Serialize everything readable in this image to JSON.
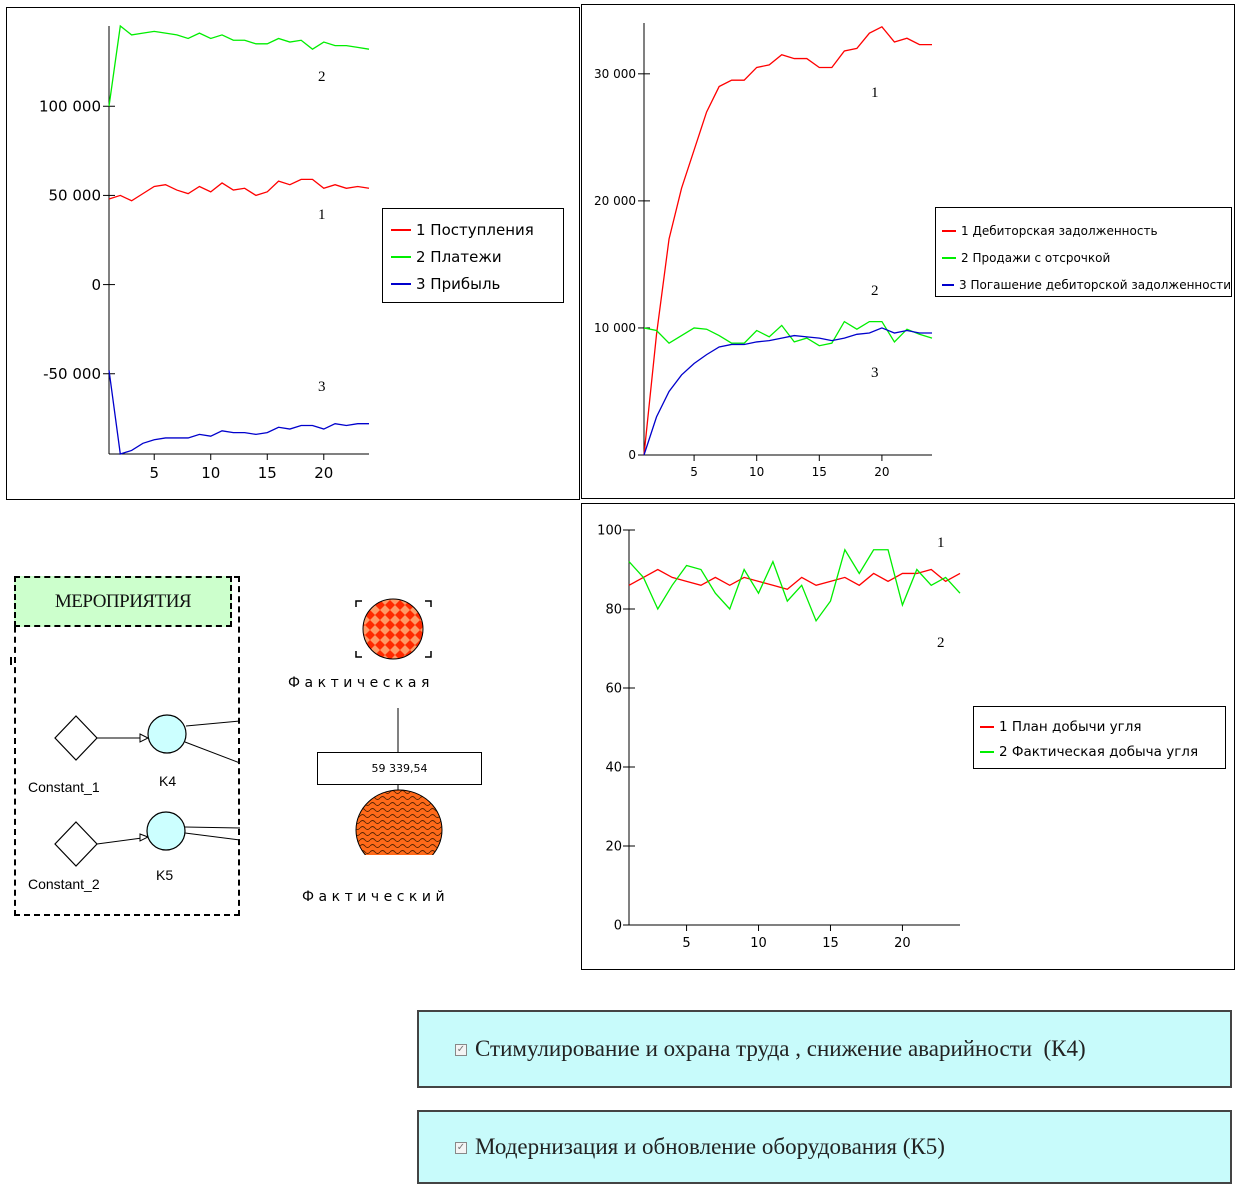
{
  "chart_data": [
    {
      "type": "line",
      "x": [
        1,
        2,
        3,
        4,
        5,
        6,
        7,
        8,
        9,
        10,
        11,
        12,
        13,
        14,
        15,
        16,
        17,
        18,
        19,
        20,
        21,
        22,
        23,
        24
      ],
      "ylim": [
        -95000,
        145000
      ],
      "xticks": [
        5,
        10,
        15,
        20
      ],
      "yticks": [
        -50000,
        0,
        50000,
        100000
      ],
      "ytick_labels": [
        "-50 000",
        "0",
        "50 000",
        "100 000"
      ],
      "series": [
        {
          "name": "1 Поступления",
          "color": "#ff0000",
          "label": "1",
          "values": [
            48000,
            50000,
            47000,
            51000,
            55000,
            56000,
            53000,
            51000,
            55000,
            52000,
            57000,
            53000,
            54000,
            50000,
            52000,
            58000,
            56000,
            59000,
            59000,
            54000,
            56000,
            54000,
            55000,
            54000
          ]
        },
        {
          "name": "2 Платежи",
          "color": "#00ee00",
          "label": "2",
          "values": [
            100000,
            145000,
            140000,
            141000,
            142000,
            141000,
            140000,
            138000,
            141000,
            138000,
            140000,
            137000,
            137000,
            135000,
            135000,
            138000,
            136000,
            137000,
            132000,
            136000,
            134000,
            134000,
            133000,
            132000
          ]
        },
        {
          "name": "3 Прибыль",
          "color": "#0000cc",
          "label": "3",
          "values": [
            -48000,
            -95000,
            -93000,
            -89000,
            -87000,
            -86000,
            -86000,
            -86000,
            -84000,
            -85000,
            -82000,
            -83000,
            -83000,
            -84000,
            -83000,
            -80000,
            -81000,
            -79000,
            -79000,
            -81000,
            -78000,
            -79000,
            -78000,
            -78000
          ]
        }
      ]
    },
    {
      "type": "line",
      "x": [
        1,
        2,
        3,
        4,
        5,
        6,
        7,
        8,
        9,
        10,
        11,
        12,
        13,
        14,
        15,
        16,
        17,
        18,
        19,
        20,
        21,
        22,
        23,
        24
      ],
      "ylim": [
        0,
        34000
      ],
      "xticks": [
        5,
        10,
        15,
        20
      ],
      "yticks": [
        0,
        10000,
        20000,
        30000
      ],
      "ytick_labels": [
        "0",
        "10 000",
        "20 000",
        "30 000"
      ],
      "series": [
        {
          "name": "1 Дебиторская задолженность",
          "color": "#ff0000",
          "label": "1",
          "values": [
            0,
            9500,
            17000,
            21000,
            24000,
            27000,
            29000,
            29500,
            29500,
            30500,
            30700,
            31500,
            31200,
            31200,
            30500,
            30500,
            31800,
            32000,
            33200,
            33700,
            32500,
            32800,
            32300,
            32300
          ]
        },
        {
          "name": "2 Продажи с отсрочкой",
          "color": "#00ee00",
          "label": "2",
          "values": [
            10000,
            9800,
            8800,
            9400,
            10000,
            9900,
            9400,
            8800,
            8800,
            9800,
            9300,
            10200,
            8900,
            9200,
            8600,
            8800,
            10500,
            9900,
            10500,
            10500,
            8900,
            9900,
            9500,
            9200
          ]
        },
        {
          "name": "3 Погашение дебиторской задолженности",
          "color": "#0000cc",
          "label": "3",
          "values": [
            0,
            3000,
            5000,
            6300,
            7200,
            7900,
            8500,
            8700,
            8700,
            8900,
            9000,
            9200,
            9400,
            9300,
            9200,
            9000,
            9200,
            9500,
            9600,
            10000,
            9600,
            9800,
            9600,
            9600
          ]
        }
      ]
    },
    {
      "type": "line",
      "x": [
        1,
        2,
        3,
        4,
        5,
        6,
        7,
        8,
        9,
        10,
        11,
        12,
        13,
        14,
        15,
        16,
        17,
        18,
        19,
        20,
        21,
        22,
        23,
        24
      ],
      "ylim": [
        0,
        100
      ],
      "xticks": [
        5,
        10,
        15,
        20
      ],
      "yticks": [
        0,
        20,
        40,
        60,
        80,
        100
      ],
      "ytick_labels": [
        "0",
        "20",
        "40",
        "60",
        "80",
        "100"
      ],
      "series": [
        {
          "name": "1 План добычи угля",
          "color": "#ff0000",
          "label": "1",
          "values": [
            86,
            88,
            90,
            88,
            87,
            86,
            88,
            86,
            88,
            87,
            86,
            85,
            88,
            86,
            87,
            88,
            86,
            89,
            87,
            89,
            89,
            90,
            87,
            89
          ]
        },
        {
          "name": "2 Фактическая добыча угля",
          "color": "#00ee00",
          "label": "2",
          "values": [
            92,
            88,
            80,
            86,
            91,
            90,
            84,
            80,
            90,
            84,
            92,
            82,
            86,
            77,
            82,
            95,
            89,
            95,
            95,
            81,
            90,
            86,
            88,
            84
          ]
        }
      ]
    }
  ],
  "diagram": {
    "group_title": "МЕРОПРИЯТИЯ",
    "constant_1": "Constant_1",
    "constant_2": "Constant_2",
    "k4": "K4",
    "k5": "K5",
    "top_node_label": "Фактическая",
    "value_display": "59 339,54",
    "bottom_node_label": "Фактический"
  },
  "checkboxes": [
    {
      "label": "Стимулирование и охрана труда , снижение аварийности  (К4)",
      "checked": true
    },
    {
      "label": "Модернизация и обновление оборудования (К5)",
      "checked": true
    }
  ]
}
